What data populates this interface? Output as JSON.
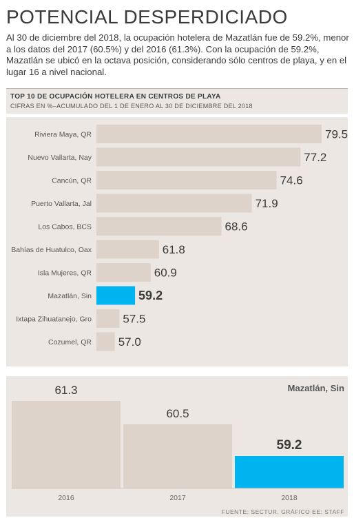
{
  "headline": "POTENCIAL DESPERDICIADO",
  "intro": "Al 30 de diciembre del 2018, la ocupación hotelera de Mazatlán fue de 59.2%, menor a los datos del 2017 (60.5%) y del 2016 (61.3%). Con la ocupación de 59.2%, Mazatlán se ubicó en la octava posición, considerando sólo centros de playa, y en el lugar 16 a nivel nacional.",
  "colors": {
    "bar": "#ddd3ca",
    "highlight": "#00b4ef",
    "panel": "#ece7e2",
    "text": "#3a3a3a"
  },
  "chart_data": [
    {
      "type": "bar",
      "orientation": "horizontal",
      "title": "TOP 10 DE OCUPACIÓN HOTELERA EN CENTROS DE PLAYA",
      "subtitle": "CIFRAS EN %–ACUMULADO DEL 1 DE ENERO AL 30 DE DICIEMBRE DEL 2018",
      "categories": [
        "Riviera Maya, QR",
        "Nuevo Vallarta, Nay",
        "Cancún, QR",
        "Puerto Vallarta, Jal",
        "Los Cabos, BCS",
        "Bahías de Huatulco, Oax",
        "Isla Mujeres, QR",
        "Mazatlán, Sin",
        "Ixtapa Zihuatanejo, Gro",
        "Cozumel, QR"
      ],
      "values": [
        79.5,
        77.2,
        74.6,
        71.9,
        68.6,
        61.8,
        60.9,
        59.2,
        57.5,
        57.0
      ],
      "value_labels": [
        "79.5",
        "77.2",
        "74.6",
        "71.9",
        "68.6",
        "61.8",
        "60.9",
        "59.2",
        "57.5",
        "57.0"
      ],
      "highlight_index": 7
    },
    {
      "type": "bar",
      "title": "Mazatlán, Sin",
      "categories": [
        "2016",
        "2017",
        "2018"
      ],
      "values": [
        61.3,
        60.5,
        59.2
      ],
      "value_labels": [
        "61.3",
        "60.5",
        "59.2"
      ],
      "highlight_index": 2
    }
  ],
  "source": "FUENTE: SECTUR. GRÁFICO EE: STAFF"
}
